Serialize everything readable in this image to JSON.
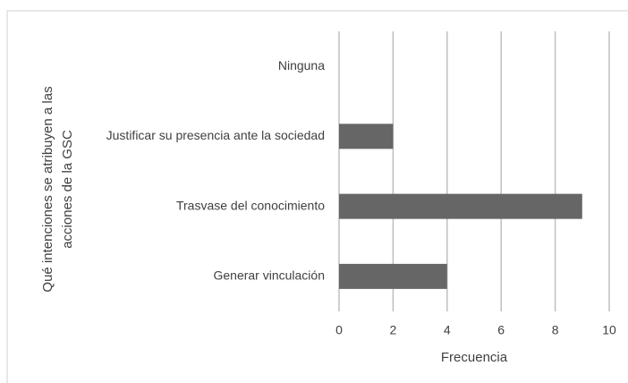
{
  "chart_data": {
    "type": "bar",
    "orientation": "horizontal",
    "categories": [
      "Ninguna",
      "Justificar su presencia ante la sociedad",
      "Trasvase del conocimiento",
      "Generar vinculación"
    ],
    "values": [
      0,
      2,
      9,
      4
    ],
    "color": "#666666",
    "xlabel": "Frecuencia",
    "ylabel": [
      "Qué intenciones se atribuyen a las",
      "acciones de la GSC"
    ],
    "xlim": [
      0,
      10
    ],
    "xticks": [
      0,
      2,
      4,
      6,
      8,
      10
    ],
    "grid": true
  }
}
